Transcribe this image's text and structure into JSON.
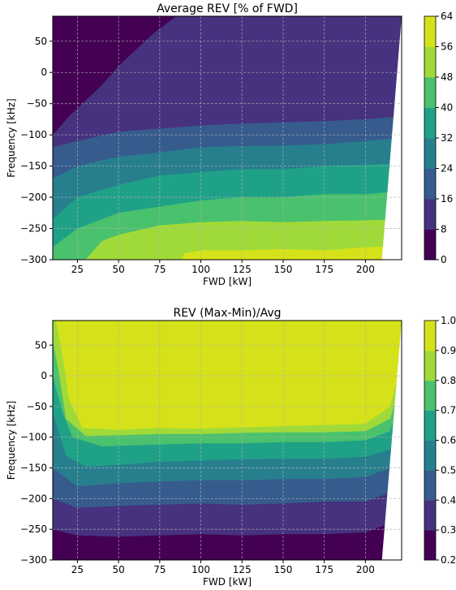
{
  "chart_data": [
    {
      "type": "contourf",
      "title": "Average REV [% of FWD]",
      "xlabel": "FWD [kW]",
      "ylabel": "Frequency [kHz]",
      "xlim": [
        10,
        222
      ],
      "ylim": [
        -300,
        90
      ],
      "xticks": [
        25,
        50,
        75,
        100,
        125,
        150,
        175,
        200
      ],
      "yticks": [
        50,
        0,
        -50,
        -100,
        -150,
        -200,
        -250,
        -300
      ],
      "xtick_labels": [
        "25",
        "50",
        "75",
        "100",
        "125",
        "150",
        "175",
        "200"
      ],
      "ytick_labels": [
        "50",
        "0",
        "−50",
        "−100",
        "−150",
        "−200",
        "−250",
        "−300"
      ],
      "grid": true,
      "colorbar": {
        "levels": [
          0,
          8,
          16,
          24,
          32,
          40,
          48,
          56,
          64
        ],
        "tick_labels": [
          "0",
          "8",
          "16",
          "24",
          "32",
          "40",
          "48",
          "56",
          "64"
        ]
      },
      "band_colors": [
        "#440154",
        "#46327e",
        "#365c8d",
        "#277f8e",
        "#1fa187",
        "#4ac16d",
        "#a0da39",
        "#d5e21a"
      ],
      "band_boundaries": [
        {
          "level": 8,
          "points": [
            [
              10,
              -100
            ],
            [
              20,
              -70
            ],
            [
              30,
              -45
            ],
            [
              40,
              -20
            ],
            [
              50,
              10
            ],
            [
              60,
              35
            ],
            [
              70,
              60
            ],
            [
              80,
              80
            ],
            [
              85,
              90
            ]
          ]
        },
        {
          "level": 16,
          "points": [
            [
              10,
              -120
            ],
            [
              25,
              -110
            ],
            [
              50,
              -95
            ],
            [
              75,
              -90
            ],
            [
              100,
              -85
            ],
            [
              125,
              -82
            ],
            [
              150,
              -80
            ],
            [
              175,
              -78
            ],
            [
              200,
              -75
            ],
            [
              222,
              -70
            ]
          ]
        },
        {
          "level": 24,
          "points": [
            [
              10,
              -170
            ],
            [
              25,
              -150
            ],
            [
              50,
              -135
            ],
            [
              75,
              -128
            ],
            [
              100,
              -120
            ],
            [
              125,
              -118
            ],
            [
              150,
              -117
            ],
            [
              175,
              -115
            ],
            [
              200,
              -110
            ],
            [
              222,
              -105
            ]
          ]
        },
        {
          "level": 32,
          "points": [
            [
              10,
              -235
            ],
            [
              25,
              -200
            ],
            [
              50,
              -180
            ],
            [
              75,
              -165
            ],
            [
              100,
              -160
            ],
            [
              125,
              -155
            ],
            [
              150,
              -155
            ],
            [
              175,
              -150
            ],
            [
              200,
              -148
            ],
            [
              222,
              -145
            ]
          ]
        },
        {
          "level": 40,
          "points": [
            [
              10,
              -280
            ],
            [
              25,
              -250
            ],
            [
              50,
              -225
            ],
            [
              75,
              -215
            ],
            [
              100,
              -205
            ],
            [
              125,
              -200
            ],
            [
              150,
              -200
            ],
            [
              175,
              -195
            ],
            [
              200,
              -195
            ],
            [
              222,
              -190
            ]
          ]
        },
        {
          "level": 48,
          "points": [
            [
              30,
              -300
            ],
            [
              40,
              -270
            ],
            [
              50,
              -260
            ],
            [
              75,
              -245
            ],
            [
              100,
              -240
            ],
            [
              125,
              -238
            ],
            [
              150,
              -240
            ],
            [
              175,
              -238
            ],
            [
              200,
              -237
            ],
            [
              222,
              -235
            ]
          ]
        },
        {
          "level": 56,
          "points": [
            [
              88,
              -300
            ],
            [
              90,
              -290
            ],
            [
              100,
              -285
            ],
            [
              125,
              -285
            ],
            [
              150,
              -283
            ],
            [
              175,
              -285
            ],
            [
              200,
              -280
            ],
            [
              222,
              -278
            ]
          ]
        }
      ],
      "blank_region": [
        [
          222,
          90
        ],
        [
          222,
          -300
        ],
        [
          210,
          -300
        ]
      ]
    },
    {
      "type": "contourf",
      "title": "REV (Max-Min)/Avg",
      "xlabel": "FWD [kW]",
      "ylabel": "Frequency [kHz]",
      "xlim": [
        10,
        222
      ],
      "ylim": [
        -300,
        90
      ],
      "xticks": [
        25,
        50,
        75,
        100,
        125,
        150,
        175,
        200
      ],
      "yticks": [
        50,
        0,
        -50,
        -100,
        -150,
        -200,
        -250,
        -300
      ],
      "xtick_labels": [
        "25",
        "50",
        "75",
        "100",
        "125",
        "150",
        "175",
        "200"
      ],
      "ytick_labels": [
        "50",
        "0",
        "−50",
        "−100",
        "−150",
        "−200",
        "−250",
        "−300"
      ],
      "grid": true,
      "colorbar": {
        "levels": [
          0.2,
          0.3,
          0.4,
          0.5,
          0.6,
          0.7,
          0.8,
          0.9,
          1.0
        ],
        "tick_labels": [
          "0.2",
          "0.3",
          "0.4",
          "0.5",
          "0.6",
          "0.7",
          "0.8",
          "0.9",
          "1.0"
        ]
      },
      "band_colors": [
        "#440154",
        "#46327e",
        "#365c8d",
        "#277f8e",
        "#1fa187",
        "#4ac16d",
        "#a0da39",
        "#d5e21a"
      ],
      "band_boundaries": [
        {
          "level": 0.3,
          "points": [
            [
              10,
              -250
            ],
            [
              25,
              -260
            ],
            [
              50,
              -262
            ],
            [
              75,
              -260
            ],
            [
              100,
              -258
            ],
            [
              125,
              -260
            ],
            [
              150,
              -258
            ],
            [
              175,
              -258
            ],
            [
              200,
              -255
            ],
            [
              215,
              -240
            ],
            [
              222,
              -200
            ]
          ]
        },
        {
          "level": 0.4,
          "points": [
            [
              10,
              -200
            ],
            [
              25,
              -215
            ],
            [
              50,
              -212
            ],
            [
              75,
              -210
            ],
            [
              100,
              -208
            ],
            [
              125,
              -210
            ],
            [
              150,
              -208
            ],
            [
              175,
              -205
            ],
            [
              200,
              -205
            ],
            [
              215,
              -190
            ],
            [
              222,
              -150
            ]
          ]
        },
        {
          "level": 0.5,
          "points": [
            [
              10,
              -150
            ],
            [
              25,
              -180
            ],
            [
              50,
              -175
            ],
            [
              75,
              -172
            ],
            [
              100,
              -170
            ],
            [
              125,
              -170
            ],
            [
              150,
              -168
            ],
            [
              175,
              -168
            ],
            [
              200,
              -165
            ],
            [
              215,
              -150
            ],
            [
              222,
              -110
            ]
          ]
        },
        {
          "level": 0.6,
          "points": [
            [
              10,
              -60
            ],
            [
              18,
              -130
            ],
            [
              30,
              -148
            ],
            [
              50,
              -145
            ],
            [
              75,
              -140
            ],
            [
              100,
              -138
            ],
            [
              125,
              -136
            ],
            [
              150,
              -135
            ],
            [
              175,
              -135
            ],
            [
              200,
              -132
            ],
            [
              215,
              -120
            ],
            [
              222,
              -80
            ]
          ]
        },
        {
          "level": 0.7,
          "points": [
            [
              10,
              0
            ],
            [
              16,
              -60
            ],
            [
              22,
              -100
            ],
            [
              40,
              -115
            ],
            [
              75,
              -112
            ],
            [
              100,
              -110
            ],
            [
              125,
              -110
            ],
            [
              150,
              -108
            ],
            [
              175,
              -108
            ],
            [
              200,
              -105
            ],
            [
              215,
              -90
            ],
            [
              222,
              -40
            ]
          ]
        },
        {
          "level": 0.8,
          "points": [
            [
              10,
              60
            ],
            [
              14,
              0
            ],
            [
              18,
              -70
            ],
            [
              30,
              -98
            ],
            [
              50,
              -97
            ],
            [
              75,
              -95
            ],
            [
              100,
              -95
            ],
            [
              125,
              -93
            ],
            [
              150,
              -92
            ],
            [
              175,
              -92
            ],
            [
              200,
              -90
            ],
            [
              215,
              -70
            ],
            [
              222,
              -10
            ]
          ]
        },
        {
          "level": 0.9,
          "points": [
            [
              12,
              90
            ],
            [
              16,
              30
            ],
            [
              20,
              -40
            ],
            [
              28,
              -85
            ],
            [
              50,
              -88
            ],
            [
              75,
              -85
            ],
            [
              100,
              -86
            ],
            [
              125,
              -84
            ],
            [
              150,
              -82
            ],
            [
              175,
              -80
            ],
            [
              200,
              -78
            ],
            [
              215,
              -50
            ],
            [
              222,
              20
            ]
          ]
        }
      ],
      "blank_region": [
        [
          222,
          90
        ],
        [
          222,
          -300
        ],
        [
          210,
          -300
        ]
      ]
    }
  ]
}
